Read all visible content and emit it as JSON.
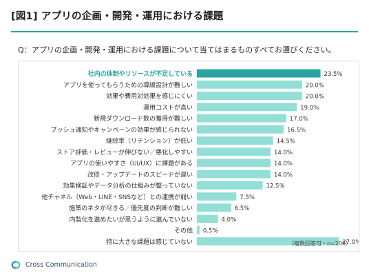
{
  "header": {
    "title": "[図1] アプリの企画・開発・運用における課題",
    "question": "Q：アプリの企画・開発・運用における課題について当てはまるものすべてお選びください。"
  },
  "note": "（複数回答可・n=200）",
  "footer": {
    "brand": "Cross Communication",
    "logo_icon": "cross-communication-logo-icon"
  },
  "colors": {
    "accent": "#2aa5a0",
    "highlight_bar": "#2aa5a0",
    "bar": "#93dfd7",
    "rule": "#2aa5a0"
  },
  "chart_data": {
    "type": "bar",
    "orientation": "horizontal",
    "categories": [
      "社内の体制やリソースが不足している",
      "アプリを使ってもらうための導線設計が難しい",
      "効果や費用対効果を感じにくい",
      "運用コストが高い",
      "新規ダウンロード数の獲得が難しい",
      "プッシュ通知やキャンペーンの効果が感じられない",
      "継続率（リテンション）が低い",
      "ストア評価・レビューが伸びない／悪化しやすい",
      "アプリの使いやすさ（UI/UX）に課題がある",
      "改修・アップデートのスピードが遅い",
      "効果検証やデータ分析の仕組みが整っていない",
      "他チャネル（Web・LINE・SNSなど）との連携が弱い",
      "施策のネタが尽きる／優先度の判断が難しい",
      "内製化を進めたいが思うように進んでいない",
      "その他",
      "特に大きな課題は感じていない"
    ],
    "values": [
      23.5,
      20.0,
      20.0,
      19.0,
      17.0,
      16.5,
      14.5,
      14.0,
      14.0,
      14.0,
      12.5,
      7.5,
      6.5,
      4.0,
      0.5,
      27.0
    ],
    "value_labels": [
      "23.5%",
      "20.0%",
      "20.0%",
      "19.0%",
      "17.0%",
      "16.5%",
      "14.5%",
      "14.0%",
      "14.0%",
      "14.0%",
      "12.5%",
      "7.5%",
      "6.5%",
      "4.0%",
      "0.5%",
      "27.0%"
    ],
    "highlight_index": 0,
    "xlim": [
      0,
      30
    ],
    "grid": false,
    "legend": "none"
  }
}
